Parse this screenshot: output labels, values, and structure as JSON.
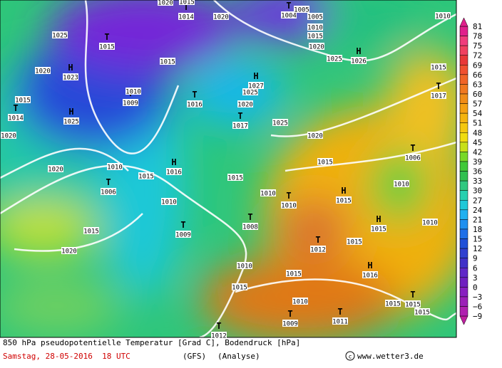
{
  "map": {
    "centers": [
      {
        "letter": "T",
        "value": "1014"
      },
      {
        "letter": "T",
        "value": "1004"
      },
      {
        "letter": "T",
        "value": "1015"
      },
      {
        "letter": "H",
        "value": "1023"
      },
      {
        "letter": "H",
        "value": "1026"
      },
      {
        "letter": "H",
        "value": "1027"
      },
      {
        "letter": "T",
        "value": "1009"
      },
      {
        "letter": "T",
        "value": "1016"
      },
      {
        "letter": "T",
        "value": "1014"
      },
      {
        "letter": "H",
        "value": "1025"
      },
      {
        "letter": "T",
        "value": "1017"
      },
      {
        "letter": "H",
        "value": "1016"
      },
      {
        "letter": "T",
        "value": "1006"
      },
      {
        "letter": "T",
        "value": "1010"
      },
      {
        "letter": "H",
        "value": "1015"
      },
      {
        "letter": "T",
        "value": "1008"
      },
      {
        "letter": "T",
        "value": "1009"
      },
      {
        "letter": "H",
        "value": "1015"
      },
      {
        "letter": "T",
        "value": "1012"
      },
      {
        "letter": "H",
        "value": "1016"
      },
      {
        "letter": "T",
        "value": "1015"
      },
      {
        "letter": "T",
        "value": "1009"
      },
      {
        "letter": "T",
        "value": "1011"
      },
      {
        "letter": "T",
        "value": "1012"
      },
      {
        "letter": "T",
        "value": "1006"
      },
      {
        "letter": "T",
        "value": "1017"
      }
    ],
    "isobar_labels": [
      "1020",
      "1015",
      "1020",
      "1005",
      "1005",
      "1010",
      "1015",
      "1020",
      "1025",
      "1025",
      "1020",
      "1015",
      "1010",
      "1015",
      "1025",
      "1020",
      "1025",
      "1020",
      "1020",
      "1020",
      "1010",
      "1015",
      "1015",
      "1015",
      "1010",
      "1010",
      "1010",
      "1015",
      "1015",
      "1010",
      "1020",
      "1010",
      "1015",
      "1015",
      "1010",
      "1015",
      "1015",
      "1010",
      "1015"
    ]
  },
  "colorbar": {
    "labels": [
      "81",
      "78",
      "75",
      "72",
      "69",
      "66",
      "63",
      "60",
      "57",
      "54",
      "51",
      "48",
      "45",
      "42",
      "39",
      "36",
      "33",
      "30",
      "27",
      "24",
      "21",
      "18",
      "15",
      "12",
      "9",
      "6",
      "3",
      "0",
      "−3",
      "−6",
      "−9"
    ]
  },
  "footer": {
    "description": "850 hPa pseudopotentielle Temperatur [Grad C], Bodendruck [hPa]",
    "date": "Samstag, 28-05-2016  18 UTC",
    "model": "(GFS)",
    "run": "(Analyse)",
    "source": "www.wetter3.de"
  }
}
